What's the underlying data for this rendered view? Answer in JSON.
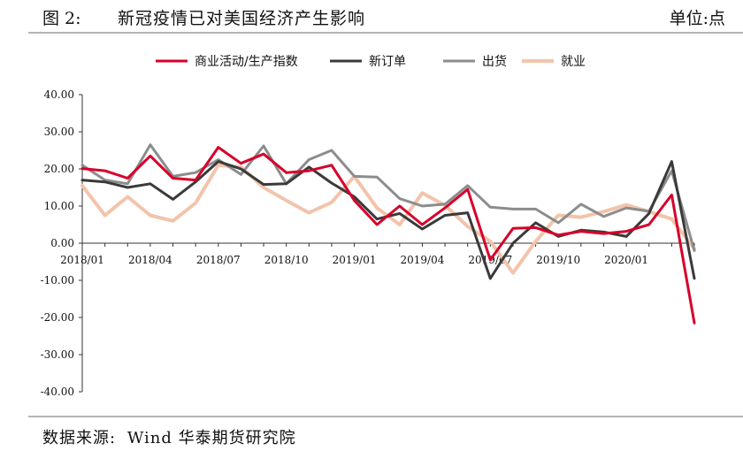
{
  "header": {
    "fig_label": "图 2:",
    "title": "新冠疫情已对美国经济产生影响",
    "unit": "单位:点"
  },
  "footer": {
    "source_label": "数据来源:",
    "source_text": "Wind  华泰期货研究院"
  },
  "chart_data": {
    "type": "line",
    "ylim": [
      -40,
      40
    ],
    "yticks": [
      40,
      30,
      20,
      10,
      0,
      -10,
      -20,
      -30,
      -40
    ],
    "ytick_labels": [
      "40.00",
      "30.00",
      "20.00",
      "10.00",
      "0.00",
      "-10.00",
      "-20.00",
      "-30.00",
      "-40.00"
    ],
    "x": [
      "2018/01",
      "2018/02",
      "2018/03",
      "2018/04",
      "2018/05",
      "2018/06",
      "2018/07",
      "2018/08",
      "2018/09",
      "2018/10",
      "2018/11",
      "2018/12",
      "2019/01",
      "2019/02",
      "2019/03",
      "2019/04",
      "2019/05",
      "2019/06",
      "2019/07",
      "2019/08",
      "2019/09",
      "2019/10",
      "2019/11",
      "2019/12",
      "2020/01",
      "2020/02",
      "2020/03",
      "2020/04"
    ],
    "xtick_labels": [
      "2018/01",
      "2018/04",
      "2018/07",
      "2018/10",
      "2019/01",
      "2019/04",
      "2019/07",
      "2019/10",
      "2020/01"
    ],
    "legend_position": "top",
    "grid": false,
    "series": [
      {
        "name": "商业活动/生产指数",
        "color": "#d7002a",
        "values": [
          20.1,
          19.5,
          17.5,
          23.5,
          17.5,
          17.0,
          25.8,
          21.5,
          24.0,
          19.0,
          19.5,
          21.0,
          11.5,
          5.0,
          10.0,
          5.0,
          9.5,
          14.5,
          -4.5,
          4.0,
          4.2,
          2.2,
          3.2,
          2.6,
          3.2,
          5.0,
          13.0,
          -21.5
        ]
      },
      {
        "name": "新订单",
        "color": "#3a3a3a",
        "values": [
          17.0,
          16.5,
          15.0,
          16.0,
          11.8,
          16.5,
          22.0,
          20.0,
          15.8,
          16.0,
          20.5,
          16.2,
          12.5,
          6.5,
          8.0,
          3.8,
          7.5,
          8.2,
          -9.5,
          0.0,
          5.5,
          1.8,
          3.5,
          3.0,
          1.8,
          8.0,
          22.0,
          -9.5
        ]
      },
      {
        "name": "出货",
        "color": "#8c8c8c",
        "values": [
          21.0,
          17.0,
          16.0,
          26.5,
          18.0,
          19.0,
          22.5,
          18.5,
          26.2,
          16.0,
          22.5,
          25.0,
          18.0,
          17.8,
          12.0,
          10.0,
          10.5,
          15.5,
          9.7,
          9.2,
          9.2,
          5.5,
          10.5,
          7.2,
          9.5,
          8.6,
          19.5,
          -2.0
        ]
      },
      {
        "name": "就业",
        "color": "#f2c4ab",
        "values": [
          15.5,
          7.5,
          12.5,
          7.5,
          6.0,
          10.8,
          21.0,
          20.5,
          15.0,
          11.5,
          8.2,
          11.0,
          18.0,
          9.5,
          5.0,
          13.5,
          10.2,
          4.5,
          0.5,
          -8.0,
          0.5,
          7.5,
          7.0,
          8.5,
          10.3,
          8.5,
          6.5,
          -1.5
        ]
      }
    ]
  }
}
